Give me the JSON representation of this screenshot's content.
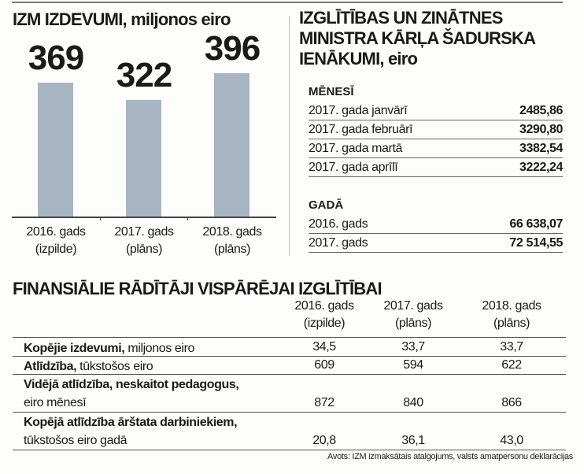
{
  "chart_data": {
    "type": "bar",
    "title": "IZM IZDEVUMI, miljonos eiro",
    "categories": [
      [
        "2016. gads",
        "(izpilde)"
      ],
      [
        "2017. gads",
        "(plāns)"
      ],
      [
        "2018. gads",
        "(plāns)"
      ]
    ],
    "values": [
      369,
      322,
      396
    ],
    "value_labels": [
      "369",
      "322",
      "396"
    ],
    "bar_color": "#a7b4c2",
    "xlabel": "",
    "ylabel": "",
    "ylim": [
      0,
      400
    ],
    "grid": false
  },
  "minister": {
    "title_lines": [
      "IZGLĪTĪBAS UN ZINĀTNES",
      "MINISTRA KĀRĻA ŠADURSKA",
      "IENĀKUMI, eiro"
    ],
    "monthly_heading": "MĒNESĪ",
    "monthly": [
      {
        "label": "2017. gada janvārī",
        "value": "2485,86"
      },
      {
        "label": "2017. gada februārī",
        "value": "3290,80"
      },
      {
        "label": "2017. gada martā",
        "value": "3382,54"
      },
      {
        "label": "2017. gada aprīlī",
        "value": "3222,24"
      }
    ],
    "yearly_heading": "GADĀ",
    "yearly": [
      {
        "label": "2016. gads",
        "value": "66 638,07"
      },
      {
        "label": "2017. gads",
        "value": "72 514,55"
      }
    ]
  },
  "table": {
    "title": "FINANSIĀLIE RĀDĪTĀJI VISPĀRĒJAI IZGLĪTĪBAI",
    "columns": [
      [
        "2016. gads",
        "(izpilde)"
      ],
      [
        "2017. gads",
        "(plāns)"
      ],
      [
        "2018. gads",
        "(plāns)"
      ]
    ],
    "rows": [
      {
        "bold": "Kopējie izdevumi,",
        "rest": " miljonos eiro",
        "line2": "",
        "values": [
          "34,5",
          "33,7",
          "33,7"
        ]
      },
      {
        "bold": "Atlīdzība,",
        "rest": " tūkstošos eiro",
        "line2": "",
        "values": [
          "609",
          "594",
          "622"
        ]
      },
      {
        "bold": "Vidējā atlīdzība, neskaitot pedagogus,",
        "rest": "",
        "line2": "eiro mēnesī",
        "values": [
          "872",
          "840",
          "866"
        ]
      },
      {
        "bold": "Kopējā atlīdzība ārštata darbiniekiem,",
        "rest": "",
        "line2": "tūkstošos eiro gadā",
        "values": [
          "20,8",
          "36,1",
          "43,0"
        ]
      }
    ],
    "source": "Avots: IZM izmaksātais atalgojums, valsts amatpersonu deklarācijas"
  }
}
